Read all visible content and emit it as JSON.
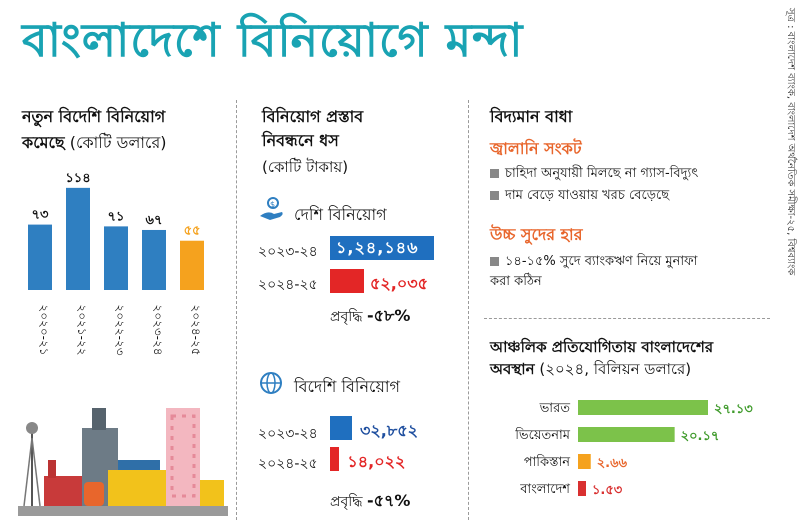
{
  "title": "বাংলাদেশে বিনিয়োগে মন্দা",
  "source": "সূত্র : বাংলাদেশ ব্যাংক, বাংলাদেশ অর্থনৈতিক সমীক্ষা-২৫, বিশ্বব্যাংক",
  "colors": {
    "title": "#19a3b3",
    "bar": "#2f7fc1",
    "bar_highlight": "#f5a21e",
    "orange": "#e8662c",
    "blue_bar": "#1f6fbf",
    "red_bar": "#e32626",
    "green_bar": "#7cc24a",
    "bd_bar": "#d93030"
  },
  "fdi_chart": {
    "title_line1": "নতুন বিদেশি বিনিয়োগ",
    "title_line2_bold": "কমেছে",
    "title_line2_unit": "(কোটি ডলারে)"
  },
  "proposals": {
    "title_line1": "বিনিয়োগ প্রস্তাব",
    "title_line2": "নিবন্ধনে ধস",
    "unit": "(কোটি টাকায়)",
    "growth_label": "প্রবৃদ্ধি",
    "domestic": {
      "label": "দেশি বিনিয়োগ",
      "icon": "money-hand-icon",
      "rows": [
        {
          "year": "২০২৩-২৪",
          "value_text": "১,২৪,১৪৬"
        },
        {
          "year": "২০২৪-২৫",
          "value_text": "৫২,০৩৫"
        }
      ],
      "growth": "-৫৮%"
    },
    "foreign": {
      "label": "বিদেশি বিনিয়োগ",
      "icon": "globe-icon",
      "rows": [
        {
          "year": "২০২৩-২৪",
          "value_text": "৩২,৮৫২"
        },
        {
          "year": "২০২৪-২৫",
          "value_text": "১৪,০২২"
        }
      ],
      "growth": "-৫৭%"
    }
  },
  "barriers": {
    "title": "বিদ্যমান বাধা",
    "groups": [
      {
        "heading": "জ্বালানি সংকট",
        "items": [
          "চাহিদা অনুযায়ী মিলছে না গ্যাস-বিদ্যুৎ",
          "দাম বেড়ে যাওয়ায় খরচ বেড়েছে"
        ]
      },
      {
        "heading": "উচ্চ সুদের হার",
        "items": [
          "১৪-১৫% সুদে ব্যাংকঋণ নিয়ে মুনাফা করা কঠিন"
        ]
      }
    ]
  },
  "regional": {
    "title_line1": "আঞ্চলিক প্রতিযোগিতায় বাংলাদেশের",
    "title_line2_bold": "অবস্থান",
    "title_line2_unit": "(২০২৪, বিলিয়ন ডলারে)"
  },
  "chart_data": [
    {
      "type": "bar",
      "title": "নতুন বিদেশি বিনিয়োগ কমেছে (কোটি ডলারে)",
      "categories": [
        "২০২০-২১",
        "২০২১-২২",
        "২০২২-২৩",
        "২০২৩-২৪",
        "২০২৪-২৫"
      ],
      "values": [
        73,
        114,
        71,
        67,
        55
      ],
      "value_labels": [
        "৭৩",
        "১১৪",
        "৭১",
        "৬৭",
        "৫৫"
      ],
      "highlight_index": 4,
      "ylim": [
        0,
        125
      ]
    },
    {
      "type": "bar",
      "orientation": "horizontal",
      "title": "দেশি বিনিয়োগ (কোটি টাকায়)",
      "categories": [
        "২০২৩-২৪",
        "২০২৪-২৫"
      ],
      "values": [
        124146,
        52035
      ],
      "value_labels": [
        "১,২৪,১৪৬",
        "৫২,০৩৫"
      ]
    },
    {
      "type": "bar",
      "orientation": "horizontal",
      "title": "বিদেশি বিনিয়োগ (কোটি টাকায়)",
      "categories": [
        "২০২৩-২৪",
        "২০২৪-২৫"
      ],
      "values": [
        32852,
        14022
      ],
      "value_labels": [
        "৩২,৮৫২",
        "১৪,০২২"
      ]
    },
    {
      "type": "bar",
      "orientation": "horizontal",
      "title": "আঞ্চলিক প্রতিযোগিতায় বাংলাদেশের অবস্থান (২০২৪, বিলিয়ন ডলারে)",
      "categories": [
        "ভারত",
        "ভিয়েতনাম",
        "পাকিস্তান",
        "বাংলাদেশ"
      ],
      "values": [
        27.13,
        20.17,
        2.66,
        1.53
      ],
      "value_labels": [
        "২৭.১৩",
        "২০.১৭",
        "২.৬৬",
        "১.৫৩"
      ],
      "bar_colors": [
        "#7cc24a",
        "#7cc24a",
        "#f5a21e",
        "#d93030"
      ],
      "label_colors": [
        "#3e9a2a",
        "#3e9a2a",
        "#e8662c",
        "#d93030"
      ]
    }
  ]
}
